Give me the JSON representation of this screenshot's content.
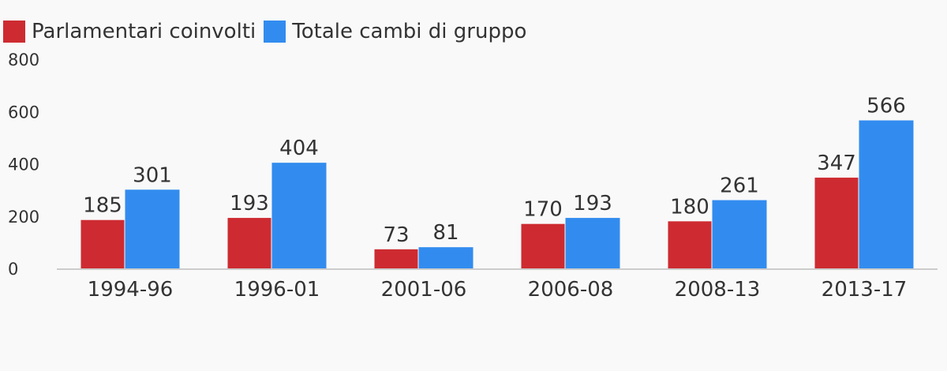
{
  "legend": [
    {
      "label": "Parlamentari coinvolti",
      "color": "#cd2b31"
    },
    {
      "label": "Totale cambi di gruppo",
      "color": "#328cef"
    }
  ],
  "chart_data": {
    "type": "bar",
    "categories": [
      "1994-96",
      "1996-01",
      "2001-06",
      "2006-08",
      "2008-13",
      "2013-17"
    ],
    "series": [
      {
        "name": "Parlamentari coinvolti",
        "color": "#cd2b31",
        "values": [
          185,
          193,
          73,
          170,
          180,
          347
        ]
      },
      {
        "name": "Totale cambi di gruppo",
        "color": "#328cef",
        "values": [
          301,
          404,
          81,
          193,
          261,
          566
        ]
      }
    ],
    "yticks": [
      "0",
      "200",
      "400",
      "600",
      "800"
    ],
    "ylim": [
      0,
      800
    ],
    "grid": false,
    "legend_position": "top-left"
  }
}
